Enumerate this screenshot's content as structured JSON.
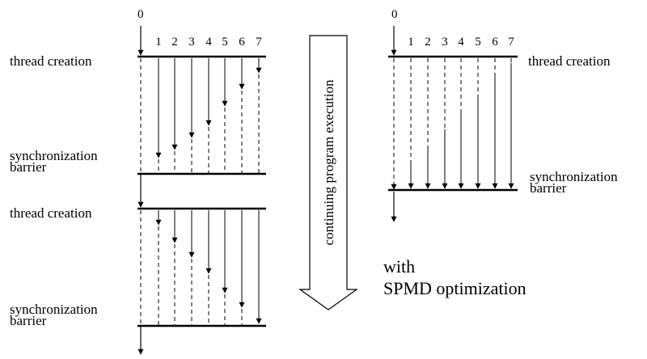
{
  "left_diagram": {
    "master_thread_label": "0",
    "thread_labels": [
      "1",
      "2",
      "3",
      "4",
      "5",
      "6",
      "7"
    ],
    "creation_label_1": "thread creation",
    "barrier_label_1_line1": "synchronization",
    "barrier_label_1_line2": "barrier",
    "creation_label_2": "thread creation",
    "barrier_label_2_line1": "synchronization",
    "barrier_label_2_line2": "barrier"
  },
  "center_arrow": {
    "label": "continuing program execution"
  },
  "right_diagram": {
    "master_thread_label": "0",
    "thread_labels": [
      "1",
      "2",
      "3",
      "4",
      "5",
      "6",
      "7"
    ],
    "creation_label": "thread creation",
    "barrier_label_line1": "synchronization",
    "barrier_label_line2": "barrier"
  },
  "caption": {
    "line1": "with",
    "line2": "SPMD optimization"
  }
}
